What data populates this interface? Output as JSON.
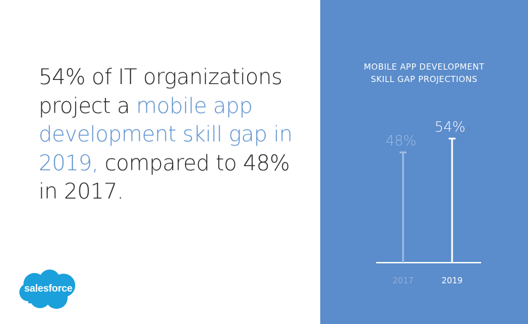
{
  "headline": {
    "part1": "54% of IT organizations project a ",
    "highlight": "mobile app development skill gap in 2019,",
    "part2": " compared to 48% in 2017."
  },
  "logo": {
    "text": "salesforce",
    "color": "#1ba0db"
  },
  "colors": {
    "panel": "#5b8ccb",
    "highlight": "#5a90cf",
    "faded": "#9fbde3",
    "white": "#ffffff"
  },
  "chart_data": {
    "type": "bar",
    "title_lines": [
      "MOBILE APP DEVELOPMENT",
      "SKILL GAP PROJECTIONS"
    ],
    "categories": [
      "2017",
      "2019"
    ],
    "values": [
      48,
      54
    ],
    "value_labels": [
      "48%",
      "54%"
    ],
    "ylim": [
      0,
      54
    ],
    "xlabel": "",
    "ylabel": "",
    "grid": false,
    "style": "lollipop-lines"
  }
}
